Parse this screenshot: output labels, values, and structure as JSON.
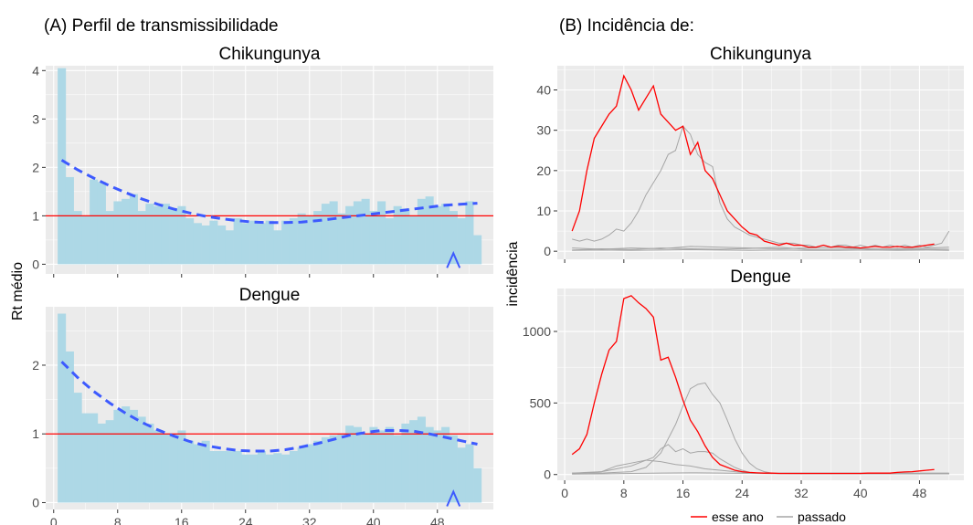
{
  "panel_a": {
    "heading": "(A) Perfil de transmissibilidade",
    "ylabel": "Rt médio"
  },
  "panel_b": {
    "heading": "(B) Incidência de:",
    "ylabel": "incidência",
    "legend": {
      "current_label": "esse ano",
      "past_label": "passado"
    }
  },
  "colors": {
    "bar": "#add8e6",
    "trend": "#3d5afe",
    "threshold": "#ff0000",
    "current": "#ff0000",
    "past": "#a6a6a6",
    "panel_bg": "#ebebeb",
    "grid": "#ffffff"
  },
  "chart_data": [
    {
      "type": "bar",
      "title": "Chikungunya",
      "xlim": [
        -1,
        55
      ],
      "ylim": [
        -0.2,
        4.1
      ],
      "xticks": [],
      "yticks": [
        0,
        1,
        2,
        3,
        4
      ],
      "x": [
        1,
        2,
        3,
        4,
        5,
        6,
        7,
        8,
        9,
        10,
        11,
        12,
        13,
        14,
        15,
        16,
        17,
        18,
        19,
        20,
        21,
        22,
        23,
        24,
        25,
        26,
        27,
        28,
        29,
        30,
        31,
        32,
        33,
        34,
        35,
        36,
        37,
        38,
        39,
        40,
        41,
        42,
        43,
        44,
        45,
        46,
        47,
        48,
        49,
        50,
        51,
        52,
        53
      ],
      "rt": [
        4.05,
        1.8,
        1.1,
        1.0,
        1.75,
        1.7,
        1.1,
        1.3,
        1.35,
        1.45,
        1.1,
        1.25,
        1.2,
        1.25,
        1.15,
        1.2,
        0.95,
        0.85,
        0.8,
        0.9,
        0.8,
        0.7,
        0.95,
        0.85,
        0.9,
        0.85,
        0.9,
        0.7,
        0.9,
        0.95,
        1.05,
        1.0,
        1.1,
        1.25,
        1.3,
        1.05,
        1.2,
        1.3,
        1.35,
        1.1,
        1.3,
        0.95,
        1.2,
        1.15,
        1.0,
        1.35,
        1.4,
        1.2,
        1.25,
        1.1,
        0.95,
        1.3,
        0.6
      ],
      "trend": [
        2.15,
        1.95,
        1.78,
        1.62,
        1.48,
        1.35,
        1.24,
        1.14,
        1.06,
        0.99,
        0.94,
        0.9,
        0.87,
        0.86,
        0.86,
        0.87,
        0.9,
        0.94,
        0.98,
        1.02,
        1.06,
        1.1,
        1.14,
        1.18,
        1.22,
        1.26
      ],
      "trend_x": [
        1,
        3,
        5,
        7,
        9,
        11,
        13,
        15,
        17,
        19,
        21,
        23,
        25,
        27,
        29,
        31,
        33,
        35,
        37,
        39,
        41,
        43,
        45,
        47,
        49,
        53
      ],
      "threshold": 1,
      "marker_week": 50
    },
    {
      "type": "bar",
      "title": "Dengue",
      "xlim": [
        -1,
        55
      ],
      "ylim": [
        -0.1,
        2.85
      ],
      "xticks": [
        0,
        8,
        16,
        24,
        32,
        40,
        48
      ],
      "yticks": [
        0,
        1,
        2
      ],
      "x": [
        1,
        2,
        3,
        4,
        5,
        6,
        7,
        8,
        9,
        10,
        11,
        12,
        13,
        14,
        15,
        16,
        17,
        18,
        19,
        20,
        21,
        22,
        23,
        24,
        25,
        26,
        27,
        28,
        29,
        30,
        31,
        32,
        33,
        34,
        35,
        36,
        37,
        38,
        39,
        40,
        41,
        42,
        43,
        44,
        45,
        46,
        47,
        48,
        49,
        50,
        51,
        52,
        53
      ],
      "rt": [
        2.75,
        2.2,
        1.6,
        1.3,
        1.3,
        1.15,
        1.2,
        1.35,
        1.4,
        1.35,
        1.25,
        1.15,
        1.05,
        1.0,
        1.0,
        1.05,
        0.9,
        0.85,
        0.9,
        0.75,
        0.75,
        0.75,
        0.75,
        0.7,
        0.7,
        0.75,
        0.7,
        0.72,
        0.7,
        0.75,
        0.8,
        0.85,
        0.9,
        0.95,
        0.98,
        1.0,
        1.12,
        1.1,
        1.0,
        1.1,
        1.05,
        1.1,
        0.98,
        1.15,
        1.2,
        1.25,
        1.1,
        1.05,
        1.1,
        0.98,
        0.8,
        0.85,
        0.5
      ],
      "trend": [
        2.05,
        1.82,
        1.62,
        1.45,
        1.3,
        1.17,
        1.06,
        0.97,
        0.89,
        0.83,
        0.79,
        0.76,
        0.75,
        0.75,
        0.77,
        0.81,
        0.86,
        0.92,
        0.98,
        1.02,
        1.05,
        1.05,
        1.04,
        1.0,
        0.95,
        0.85
      ],
      "trend_x": [
        1,
        3,
        5,
        7,
        9,
        11,
        13,
        15,
        17,
        19,
        21,
        23,
        25,
        27,
        29,
        31,
        33,
        35,
        37,
        39,
        41,
        43,
        45,
        47,
        49,
        53
      ],
      "threshold": 1,
      "marker_week": 50
    },
    {
      "type": "line",
      "title": "Chikungunya",
      "xlim": [
        -1,
        54
      ],
      "ylim": [
        -2,
        46
      ],
      "xticks": [],
      "yticks": [
        0,
        10,
        20,
        30,
        40
      ],
      "current": {
        "x": [
          1,
          2,
          3,
          4,
          5,
          6,
          7,
          8,
          9,
          10,
          11,
          12,
          13,
          14,
          15,
          16,
          17,
          18,
          19,
          20,
          21,
          22,
          23,
          24,
          25,
          26,
          27,
          28,
          29,
          30,
          31,
          32,
          33,
          34,
          35,
          36,
          37,
          38,
          39,
          40,
          41,
          42,
          43,
          44,
          45,
          46,
          47,
          48,
          49,
          50
        ],
        "y": [
          5,
          10,
          20,
          28,
          31,
          34,
          36,
          43.5,
          40,
          35,
          38,
          41,
          34,
          32,
          30,
          31,
          24,
          27,
          20,
          18,
          14,
          10,
          8,
          6,
          4.5,
          4,
          2.5,
          2,
          1.5,
          2,
          1.5,
          1.5,
          1,
          1,
          1.5,
          1,
          1.2,
          1,
          1,
          0.8,
          1,
          1.2,
          1,
          1,
          1.2,
          1,
          1,
          1.2,
          1.5,
          1.8
        ]
      },
      "past": [
        {
          "x": [
            1,
            2,
            3,
            4,
            5,
            6,
            7,
            8,
            9,
            10,
            11,
            12,
            13,
            14,
            15,
            16,
            17,
            18,
            19,
            20,
            21,
            22,
            23,
            24,
            25,
            26,
            27,
            28,
            29,
            30,
            31,
            32,
            33,
            34,
            35,
            36,
            37,
            38,
            39,
            40,
            41,
            42,
            43,
            44,
            45,
            46,
            47,
            48,
            49,
            50,
            51,
            52
          ],
          "y": [
            3,
            2.5,
            3,
            2.5,
            3,
            4,
            5.5,
            5,
            7,
            10,
            14,
            17,
            20,
            24,
            25,
            31,
            29,
            24,
            22,
            21,
            12,
            8,
            6,
            5,
            4,
            3.5,
            3,
            2.5,
            2,
            2,
            2,
            1.5,
            1.5,
            1,
            1.5,
            1,
            1.5,
            1.5,
            1,
            1.5,
            1,
            1.5,
            1,
            1.5,
            1,
            1.5,
            1,
            1.5,
            1,
            1.5,
            2,
            5
          ]
        },
        {
          "x": [
            1,
            5,
            9,
            13,
            17,
            21,
            25,
            29,
            33,
            37,
            41,
            45,
            49,
            52
          ],
          "y": [
            0.8,
            0.5,
            0.8,
            0.6,
            1.2,
            1,
            0.8,
            0.6,
            0.8,
            1,
            0.5,
            0.6,
            0.8,
            1
          ]
        },
        {
          "x": [
            1,
            5,
            9,
            13,
            17,
            21,
            25,
            29,
            33,
            37,
            41,
            45,
            49,
            52
          ],
          "y": [
            0.3,
            0.6,
            0.4,
            0.8,
            0.6,
            0.5,
            0.7,
            1,
            0.4,
            0.5,
            0.6,
            0.4,
            0.5,
            0.5
          ]
        },
        {
          "x": [
            1,
            5,
            9,
            13,
            17,
            21,
            25,
            29,
            33,
            37,
            41,
            45,
            49,
            52
          ],
          "y": [
            0.2,
            0.3,
            0.2,
            0.3,
            0.4,
            0.3,
            0.2,
            0.3,
            0.2,
            0.2,
            0.3,
            0.2,
            0.3,
            0.2
          ]
        }
      ]
    },
    {
      "type": "line",
      "title": "Dengue",
      "xlim": [
        -1,
        54
      ],
      "ylim": [
        -40,
        1300
      ],
      "xticks": [
        0,
        8,
        16,
        24,
        32,
        40,
        48
      ],
      "yticks": [
        0,
        500,
        1000
      ],
      "current": {
        "x": [
          1,
          2,
          3,
          4,
          5,
          6,
          7,
          8,
          9,
          10,
          11,
          12,
          13,
          14,
          15,
          16,
          17,
          18,
          19,
          20,
          21,
          22,
          23,
          24,
          25,
          26,
          27,
          28,
          29,
          30,
          31,
          32,
          33,
          34,
          35,
          36,
          37,
          38,
          39,
          40,
          41,
          42,
          43,
          44,
          45,
          46,
          47,
          48,
          49,
          50
        ],
        "y": [
          140,
          180,
          280,
          500,
          700,
          870,
          930,
          1230,
          1250,
          1200,
          1160,
          1100,
          800,
          820,
          680,
          520,
          380,
          300,
          200,
          120,
          70,
          50,
          30,
          20,
          15,
          12,
          10,
          10,
          8,
          8,
          8,
          8,
          8,
          8,
          8,
          8,
          8,
          8,
          8,
          8,
          10,
          10,
          10,
          10,
          15,
          18,
          20,
          25,
          30,
          35
        ]
      },
      "past": [
        {
          "x": [
            1,
            3,
            5,
            7,
            9,
            11,
            13,
            15,
            16,
            17,
            18,
            19,
            20,
            21,
            22,
            23,
            24,
            25,
            26,
            27,
            28,
            30,
            32,
            34,
            36,
            38,
            40,
            42,
            44,
            46,
            48,
            50,
            52
          ],
          "y": [
            10,
            10,
            10,
            15,
            20,
            50,
            150,
            350,
            480,
            600,
            630,
            640,
            560,
            500,
            380,
            250,
            150,
            80,
            40,
            20,
            10,
            10,
            10,
            10,
            10,
            10,
            10,
            10,
            10,
            10,
            10,
            10,
            10
          ]
        },
        {
          "x": [
            1,
            3,
            5,
            7,
            9,
            10,
            11,
            12,
            13,
            14,
            15,
            16,
            17,
            18,
            19,
            20,
            21,
            22,
            23,
            24,
            25,
            26,
            28,
            30,
            32,
            36,
            40,
            44,
            48,
            52
          ],
          "y": [
            10,
            15,
            20,
            40,
            60,
            80,
            100,
            120,
            180,
            210,
            160,
            180,
            150,
            160,
            160,
            150,
            110,
            80,
            50,
            30,
            15,
            10,
            8,
            8,
            8,
            8,
            8,
            8,
            8,
            8
          ]
        },
        {
          "x": [
            1,
            3,
            5,
            7,
            9,
            11,
            13,
            15,
            17,
            19,
            21,
            23,
            25,
            27,
            29,
            33,
            37,
            41,
            45,
            49,
            52
          ],
          "y": [
            5,
            10,
            20,
            60,
            80,
            100,
            90,
            70,
            60,
            40,
            30,
            20,
            10,
            8,
            6,
            5,
            5,
            5,
            5,
            5,
            5
          ]
        },
        {
          "x": [
            1,
            5,
            9,
            13,
            17,
            21,
            25,
            29,
            33,
            37,
            41,
            45,
            49,
            52
          ],
          "y": [
            3,
            5,
            8,
            10,
            12,
            10,
            8,
            6,
            5,
            5,
            5,
            5,
            5,
            5
          ]
        }
      ]
    }
  ]
}
